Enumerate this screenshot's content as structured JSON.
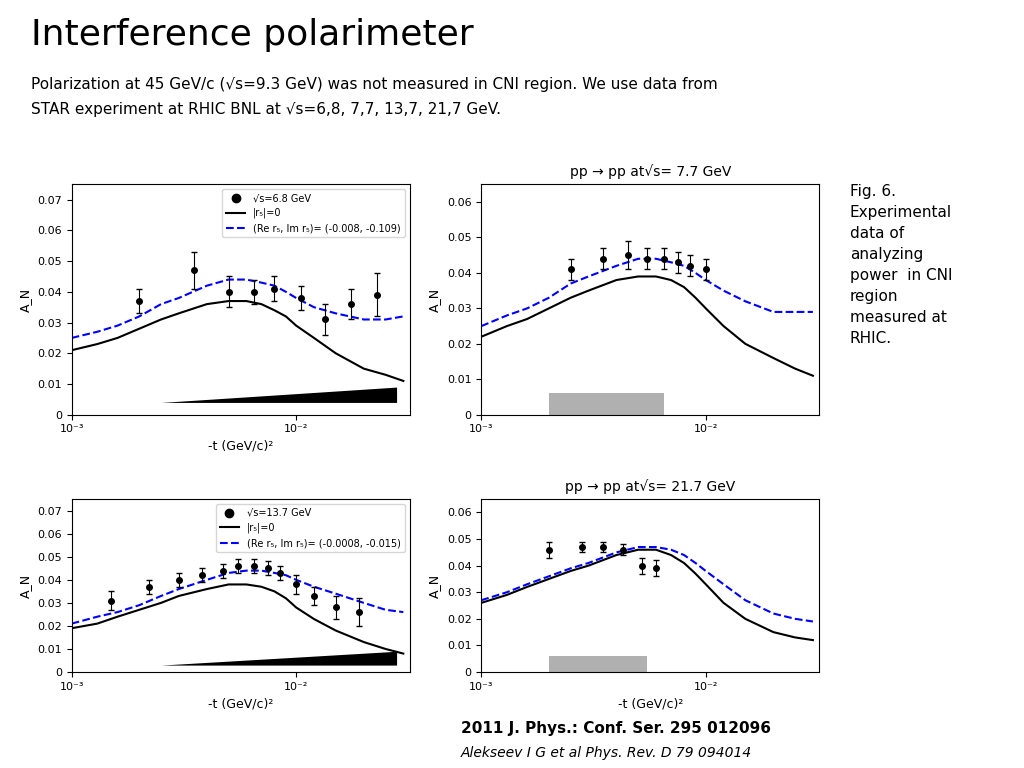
{
  "title": "Interference polarimeter",
  "subtitle": [
    "Polarization at 45 GeV/c (√s=9.3 GeV) was not measured in CNI region. We use data from",
    "STAR experiment at RHIC BNL at √s=6,8, 7,7, 13,7, 21,7 GeV."
  ],
  "annotations": [
    "Fig. 6.\nExperimental\ndata of\nanalyzing\npower  in CNI\nregion\nmeasured at\nRHIC.",
    "2011 J. Phys.: Conf. Ser. 295 012096",
    "Alekseev I G et al Phys. Rev. D 79 094014"
  ],
  "chart_data": [
    {
      "type": "line",
      "log": "x",
      "xlabel": "-t (GeV/c)²",
      "ylabel": "A_N",
      "legend": "upper right",
      "xlim": [
        0.001,
        0.032
      ],
      "xticks": [
        {
          "value": 0.001,
          "label": "10⁻³"
        },
        {
          "value": 0.01,
          "label": "10⁻²"
        }
      ],
      "ylim": [
        0,
        0.075
      ],
      "yticks": [
        0,
        0.01,
        0.02,
        0.03,
        0.04,
        0.05,
        0.06,
        0.07
      ],
      "bands": [
        {
          "x": [
            0.0025,
            0.028
          ],
          "low": [
            0.004,
            0.004
          ],
          "high": [
            0.004,
            0.009
          ],
          "color": "black"
        }
      ],
      "series": [
        {
          "name": "√s=6.8 GeV",
          "type": "scatter",
          "marker": "circle",
          "color": "black",
          "x": [
            0.002,
            0.0035,
            0.005,
            0.0065,
            0.008,
            0.0105,
            0.0135,
            0.0175,
            0.023
          ],
          "values": [
            0.037,
            0.047,
            0.04,
            0.04,
            0.041,
            0.038,
            0.031,
            0.036,
            0.039
          ],
          "yerr": [
            0.004,
            0.006,
            0.005,
            0.004,
            0.004,
            0.004,
            0.005,
            0.005,
            0.007
          ]
        },
        {
          "name": "|r₅|=0",
          "type": "line",
          "line_style": "solid",
          "color": "black",
          "x": [
            0.001,
            0.0013,
            0.0016,
            0.002,
            0.0025,
            0.003,
            0.004,
            0.005,
            0.006,
            0.007,
            0.008,
            0.009,
            0.01,
            0.012,
            0.015,
            0.02,
            0.025,
            0.03
          ],
          "values": [
            0.021,
            0.023,
            0.025,
            0.028,
            0.031,
            0.033,
            0.036,
            0.037,
            0.037,
            0.036,
            0.034,
            0.032,
            0.029,
            0.025,
            0.02,
            0.015,
            0.013,
            0.011
          ]
        },
        {
          "name": "(Re r₅, Im r₅)= (-0.008, -0.109)",
          "type": "line",
          "line_style": "dashed",
          "color": "blue",
          "x": [
            0.001,
            0.0013,
            0.0016,
            0.002,
            0.0025,
            0.003,
            0.004,
            0.005,
            0.006,
            0.007,
            0.008,
            0.009,
            0.01,
            0.012,
            0.015,
            0.02,
            0.025,
            0.03
          ],
          "values": [
            0.025,
            0.027,
            0.029,
            0.032,
            0.036,
            0.038,
            0.042,
            0.044,
            0.044,
            0.043,
            0.042,
            0.04,
            0.038,
            0.035,
            0.033,
            0.031,
            0.031,
            0.032
          ]
        }
      ]
    },
    {
      "type": "line",
      "log": "x",
      "title": "pp → pp at√s= 7.7 GeV",
      "ylabel": "A_N",
      "xlim": [
        0.001,
        0.032
      ],
      "xticks": [
        {
          "value": 0.001,
          "label": "10⁻³"
        },
        {
          "value": 0.01,
          "label": "10⁻²"
        }
      ],
      "ylim": [
        0,
        0.065
      ],
      "yticks": [
        0,
        0.01,
        0.02,
        0.03,
        0.04,
        0.05,
        0.06
      ],
      "bands": [
        {
          "x": [
            0.002,
            0.0065
          ],
          "low": [
            0,
            0
          ],
          "high": [
            0.006,
            0.006
          ],
          "color": "#b0b0b0"
        }
      ],
      "series": [
        {
          "type": "scatter",
          "marker": "circle",
          "color": "black",
          "x": [
            0.0025,
            0.0035,
            0.0045,
            0.0055,
            0.0065,
            0.0075,
            0.0085,
            0.01
          ],
          "values": [
            0.041,
            0.044,
            0.045,
            0.044,
            0.044,
            0.043,
            0.042,
            0.041
          ],
          "yerr": [
            0.003,
            0.003,
            0.004,
            0.003,
            0.003,
            0.003,
            0.003,
            0.003
          ]
        },
        {
          "type": "line",
          "line_style": "solid",
          "color": "black",
          "x": [
            0.001,
            0.0013,
            0.0016,
            0.002,
            0.0025,
            0.003,
            0.004,
            0.005,
            0.006,
            0.007,
            0.008,
            0.009,
            0.01,
            0.012,
            0.015,
            0.02,
            0.025,
            0.03
          ],
          "values": [
            0.022,
            0.025,
            0.027,
            0.03,
            0.033,
            0.035,
            0.038,
            0.039,
            0.039,
            0.038,
            0.036,
            0.033,
            0.03,
            0.025,
            0.02,
            0.016,
            0.013,
            0.011
          ]
        },
        {
          "type": "line",
          "line_style": "dashed",
          "color": "blue",
          "x": [
            0.001,
            0.0013,
            0.0016,
            0.002,
            0.0025,
            0.003,
            0.004,
            0.005,
            0.006,
            0.007,
            0.008,
            0.009,
            0.01,
            0.012,
            0.015,
            0.02,
            0.025,
            0.03
          ],
          "values": [
            0.025,
            0.028,
            0.03,
            0.033,
            0.037,
            0.039,
            0.042,
            0.044,
            0.044,
            0.043,
            0.042,
            0.04,
            0.038,
            0.035,
            0.032,
            0.029,
            0.029,
            0.029
          ]
        }
      ]
    },
    {
      "type": "line",
      "log": "x",
      "xlabel": "-t (GeV/c)²",
      "ylabel": "A_N",
      "legend": "upper right",
      "xlim": [
        0.001,
        0.032
      ],
      "xticks": [
        {
          "value": 0.001,
          "label": "10⁻³"
        },
        {
          "value": 0.01,
          "label": "10⁻²"
        }
      ],
      "ylim": [
        0,
        0.075
      ],
      "yticks": [
        0,
        0.01,
        0.02,
        0.03,
        0.04,
        0.05,
        0.06,
        0.07
      ],
      "bands": [
        {
          "x": [
            0.0025,
            0.028
          ],
          "low": [
            0.003,
            0.003
          ],
          "high": [
            0.003,
            0.009
          ],
          "color": "black"
        }
      ],
      "series": [
        {
          "name": "√s=13.7 GeV",
          "type": "scatter",
          "marker": "circle",
          "color": "black",
          "x": [
            0.0015,
            0.0022,
            0.003,
            0.0038,
            0.0047,
            0.0055,
            0.0065,
            0.0075,
            0.0085,
            0.01,
            0.012,
            0.015,
            0.019
          ],
          "values": [
            0.031,
            0.037,
            0.04,
            0.042,
            0.044,
            0.046,
            0.046,
            0.045,
            0.043,
            0.038,
            0.033,
            0.028,
            0.026
          ],
          "yerr": [
            0.004,
            0.003,
            0.003,
            0.003,
            0.003,
            0.003,
            0.003,
            0.003,
            0.003,
            0.004,
            0.004,
            0.005,
            0.006
          ]
        },
        {
          "name": "|r₅|=0",
          "type": "line",
          "line_style": "solid",
          "color": "black",
          "x": [
            0.001,
            0.0013,
            0.0016,
            0.002,
            0.0025,
            0.003,
            0.004,
            0.005,
            0.006,
            0.007,
            0.008,
            0.009,
            0.01,
            0.012,
            0.015,
            0.02,
            0.025,
            0.03
          ],
          "values": [
            0.019,
            0.021,
            0.024,
            0.027,
            0.03,
            0.033,
            0.036,
            0.038,
            0.038,
            0.037,
            0.035,
            0.032,
            0.028,
            0.023,
            0.018,
            0.013,
            0.01,
            0.008
          ]
        },
        {
          "name": "(Re r₅, Im r₅)= (-0.0008, -0.015)",
          "type": "line",
          "line_style": "dashed",
          "color": "blue",
          "x": [
            0.001,
            0.0013,
            0.0016,
            0.002,
            0.0025,
            0.003,
            0.004,
            0.005,
            0.006,
            0.007,
            0.008,
            0.009,
            0.01,
            0.012,
            0.015,
            0.02,
            0.025,
            0.03
          ],
          "values": [
            0.021,
            0.024,
            0.026,
            0.029,
            0.033,
            0.036,
            0.04,
            0.043,
            0.044,
            0.044,
            0.043,
            0.042,
            0.04,
            0.037,
            0.034,
            0.03,
            0.027,
            0.026
          ]
        }
      ]
    },
    {
      "type": "line",
      "log": "x",
      "title": "pp → pp at√s= 21.7 GeV",
      "xlabel": "-t (GeV/c)²",
      "ylabel": "A_N",
      "xlim": [
        0.001,
        0.032
      ],
      "xticks": [
        {
          "value": 0.001,
          "label": "10⁻³"
        },
        {
          "value": 0.01,
          "label": "10⁻²"
        }
      ],
      "ylim": [
        0,
        0.065
      ],
      "yticks": [
        0,
        0.01,
        0.02,
        0.03,
        0.04,
        0.05,
        0.06
      ],
      "bands": [
        {
          "x": [
            0.002,
            0.0055
          ],
          "low": [
            0,
            0
          ],
          "high": [
            0.006,
            0.006
          ],
          "color": "#b0b0b0"
        }
      ],
      "series": [
        {
          "type": "scatter",
          "marker": "circle",
          "color": "black",
          "x": [
            0.002,
            0.0028,
            0.0035,
            0.0043,
            0.0052,
            0.006
          ],
          "values": [
            0.046,
            0.047,
            0.047,
            0.046,
            0.04,
            0.039
          ],
          "yerr": [
            0.003,
            0.002,
            0.002,
            0.002,
            0.003,
            0.003
          ]
        },
        {
          "type": "line",
          "line_style": "solid",
          "color": "black",
          "x": [
            0.001,
            0.0013,
            0.0016,
            0.002,
            0.0025,
            0.003,
            0.004,
            0.005,
            0.006,
            0.007,
            0.008,
            0.009,
            0.01,
            0.012,
            0.015,
            0.02,
            0.025,
            0.03
          ],
          "values": [
            0.026,
            0.029,
            0.032,
            0.035,
            0.038,
            0.04,
            0.044,
            0.046,
            0.046,
            0.044,
            0.041,
            0.037,
            0.033,
            0.026,
            0.02,
            0.015,
            0.013,
            0.012
          ]
        },
        {
          "type": "line",
          "line_style": "dashed",
          "color": "blue",
          "x": [
            0.001,
            0.0013,
            0.0016,
            0.002,
            0.0025,
            0.003,
            0.004,
            0.005,
            0.006,
            0.007,
            0.008,
            0.009,
            0.01,
            0.012,
            0.015,
            0.02,
            0.025,
            0.03
          ],
          "values": [
            0.027,
            0.03,
            0.033,
            0.036,
            0.039,
            0.041,
            0.045,
            0.047,
            0.047,
            0.046,
            0.044,
            0.041,
            0.038,
            0.033,
            0.027,
            0.022,
            0.02,
            0.019
          ]
        }
      ]
    }
  ]
}
